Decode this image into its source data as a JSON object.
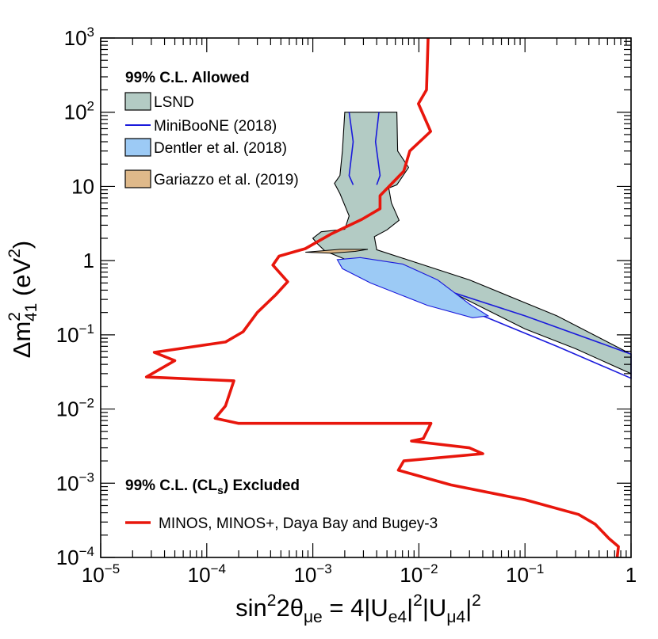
{
  "chart_data": {
    "type": "line",
    "title": "",
    "x_scale": "log",
    "y_scale": "log",
    "xlim": [
      1e-05,
      1
    ],
    "ylim": [
      0.0001,
      1000
    ],
    "x_ticks": [
      {
        "value": 1e-05,
        "base": "10",
        "exp": "−5"
      },
      {
        "value": 0.0001,
        "base": "10",
        "exp": "−4"
      },
      {
        "value": 0.001,
        "base": "10",
        "exp": "−3"
      },
      {
        "value": 0.01,
        "base": "10",
        "exp": "−2"
      },
      {
        "value": 0.1,
        "base": "10",
        "exp": "−1"
      },
      {
        "value": 1,
        "base": "1",
        "exp": ""
      }
    ],
    "y_ticks": [
      {
        "value": 0.0001,
        "base": "10",
        "exp": "−4"
      },
      {
        "value": 0.001,
        "base": "10",
        "exp": "−3"
      },
      {
        "value": 0.01,
        "base": "10",
        "exp": "−2"
      },
      {
        "value": 0.1,
        "base": "10",
        "exp": "−1"
      },
      {
        "value": 1,
        "base": "1",
        "exp": ""
      },
      {
        "value": 10,
        "base": "10",
        "exp": ""
      },
      {
        "value": 100,
        "base": "10",
        "exp": "2"
      },
      {
        "value": 1000,
        "base": "10",
        "exp": "3"
      }
    ],
    "xlabel": {
      "main": "sin",
      "sup1": "2",
      "theta": "2θ",
      "sub1": "μe",
      "eq": " = 4|U",
      "sub2": "e4",
      "bar1": "|",
      "sup2": "2",
      "mid": "|U",
      "sub3": "μ4",
      "bar2": "|",
      "sup3": "2"
    },
    "ylabel": {
      "main": "Δm",
      "sup": "2",
      "sub": "41",
      "unit": " (eV",
      "unit_sup": "2",
      "close": ")"
    },
    "legend": {
      "allowed_header": "99% C.L. Allowed",
      "excluded_header_main": "99% C.L. (CL",
      "excluded_header_sub": "s",
      "excluded_header_end": ") Excluded",
      "items": [
        {
          "label": "LSND",
          "kind": "box",
          "fill": "#b3cbc4"
        },
        {
          "label": "MiniBooNE (2018)",
          "kind": "line",
          "color": "#1a1adc"
        },
        {
          "label": "Dentler et al. (2018)",
          "kind": "box",
          "fill": "#9ccaf5"
        },
        {
          "label": "Gariazzo et al. (2019)",
          "kind": "box",
          "fill": "#dfb98a"
        },
        {
          "label": "MINOS, MINOS+, Daya Bay and Bugey-3",
          "kind": "line",
          "color": "#e8160c"
        }
      ]
    },
    "colors": {
      "lsnd_fill": "#b3cbc4",
      "miniboone": "#1a1adc",
      "dentler_fill": "#9ccaf5",
      "gariazzo_fill": "#dfb98a",
      "exclusion": "#e8160c"
    },
    "series": [
      {
        "name": "MINOS, MINOS+, Daya Bay and Bugey-3",
        "role": "exclusion_contour",
        "points": [
          [
            0.0122,
            1000
          ],
          [
            0.0118,
            200
          ],
          [
            0.0099,
            130
          ],
          [
            0.0129,
            55
          ],
          [
            0.0082,
            30
          ],
          [
            0.0072,
            16
          ],
          [
            0.0043,
            7.5
          ],
          [
            0.0043,
            5.0
          ],
          [
            0.0029,
            3.6
          ],
          [
            0.0015,
            2.3
          ],
          [
            0.00085,
            1.45
          ],
          [
            0.00048,
            1.15
          ],
          [
            0.00042,
            0.87
          ],
          [
            0.00058,
            0.52
          ],
          [
            0.00045,
            0.35
          ],
          [
            0.0003,
            0.2
          ],
          [
            0.00022,
            0.11
          ],
          [
            0.00015,
            0.08
          ],
          [
            3.2e-05,
            0.058
          ],
          [
            5e-05,
            0.045
          ],
          [
            2.7e-05,
            0.027
          ],
          [
            0.00018,
            0.024
          ],
          [
            0.00015,
            0.011
          ],
          [
            0.00012,
            0.0075
          ],
          [
            0.0002,
            0.0064
          ],
          [
            0.013,
            0.0064
          ],
          [
            0.011,
            0.004
          ],
          [
            0.0085,
            0.0037
          ],
          [
            0.03,
            0.003
          ],
          [
            0.04,
            0.0025
          ],
          [
            0.0072,
            0.002
          ],
          [
            0.0064,
            0.0015
          ],
          [
            0.02,
            0.00095
          ],
          [
            0.1,
            0.0006
          ],
          [
            0.32,
            0.00038
          ],
          [
            0.46,
            0.00028
          ],
          [
            0.62,
            0.00018
          ],
          [
            0.76,
            0.00014
          ],
          [
            0.74,
            0.0001
          ]
        ]
      },
      {
        "name": "LSND",
        "role": "allowed_region",
        "points": [
          [
            0.002,
            100
          ],
          [
            0.0062,
            100
          ],
          [
            0.0063,
            30
          ],
          [
            0.008,
            18
          ],
          [
            0.0062,
            10.5
          ],
          [
            0.0052,
            9.5
          ],
          [
            0.0055,
            6.0
          ],
          [
            0.0065,
            3.5
          ],
          [
            0.005,
            2.6
          ],
          [
            0.0038,
            2.1
          ],
          [
            0.004,
            1.4
          ],
          [
            0.03,
            0.55
          ],
          [
            0.2,
            0.18
          ],
          [
            1.0,
            0.055
          ],
          [
            1.0,
            0.03
          ],
          [
            0.3,
            0.065
          ],
          [
            0.1,
            0.12
          ],
          [
            0.02,
            0.38
          ],
          [
            0.006,
            0.7
          ],
          [
            0.003,
            0.98
          ],
          [
            0.002,
            1.05
          ],
          [
            0.0013,
            1.35
          ],
          [
            0.0011,
            1.7
          ],
          [
            0.001,
            2.0
          ],
          [
            0.0012,
            2.45
          ],
          [
            0.002,
            2.65
          ],
          [
            0.0022,
            4.0
          ],
          [
            0.0018,
            8.0
          ],
          [
            0.0016,
            11
          ],
          [
            0.0018,
            14
          ],
          [
            0.0019,
            30
          ],
          [
            0.002,
            100
          ]
        ]
      },
      {
        "name": "MiniBooNE (2018)",
        "role": "allowed_region_boundary",
        "points": [
          [
            0.004,
            0.65
          ],
          [
            0.02,
            0.38
          ],
          [
            0.1,
            0.18
          ],
          [
            1.0,
            0.055
          ],
          [
            1.0,
            0.026
          ],
          [
            0.2,
            0.07
          ],
          [
            0.04,
            0.18
          ],
          [
            0.008,
            0.42
          ],
          [
            0.003,
            0.8
          ],
          [
            0.0022,
            1.0
          ]
        ]
      },
      {
        "name": "Dentler et al. (2018)",
        "role": "allowed_region",
        "points": [
          [
            0.0017,
            1.03
          ],
          [
            0.0028,
            1.1
          ],
          [
            0.007,
            0.9
          ],
          [
            0.015,
            0.55
          ],
          [
            0.03,
            0.26
          ],
          [
            0.045,
            0.18
          ],
          [
            0.032,
            0.17
          ],
          [
            0.012,
            0.25
          ],
          [
            0.0035,
            0.5
          ],
          [
            0.0019,
            0.78
          ],
          [
            0.0017,
            1.03
          ]
        ]
      },
      {
        "name": "Gariazzo et al. (2019)",
        "role": "allowed_region",
        "points": [
          [
            0.00085,
            1.3
          ],
          [
            0.0018,
            1.42
          ],
          [
            0.0033,
            1.42
          ],
          [
            0.0025,
            1.33
          ],
          [
            0.0015,
            1.26
          ],
          [
            0.00085,
            1.3
          ]
        ]
      }
    ]
  }
}
